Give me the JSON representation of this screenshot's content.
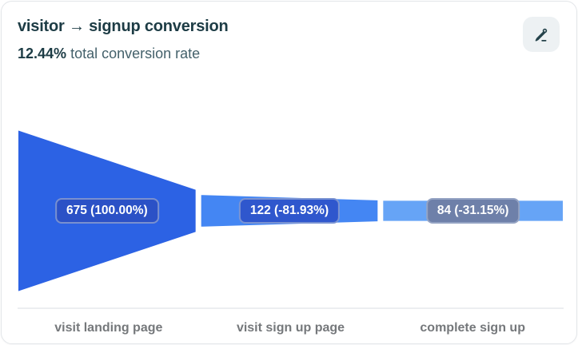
{
  "header": {
    "title": "visitor → signup conversion",
    "total_rate": "12.44%",
    "total_rate_label": "total conversion rate"
  },
  "colors": {
    "accent_blue": "#2c62e4",
    "title_text": "#1d3c45",
    "axis_label_text": "#75787b",
    "edit_button_bg": "#edf1f3"
  },
  "chart_data": {
    "type": "funnel",
    "title": "visitor → signup conversion",
    "total_conversion_rate": "12.44%",
    "orientation": "horizontal",
    "max_value": 675,
    "grid": false,
    "steps": [
      {
        "label": "visit landing page",
        "value": 675,
        "display": "675 (100.00%)",
        "change_from_previous": "100.00%",
        "segment_color": "#2c62e4",
        "pill_color": "#2b51c6"
      },
      {
        "label": "visit sign up page",
        "value": 122,
        "display": "122 (-81.93%)",
        "change_from_previous": "-81.93%",
        "segment_color": "#4486f3",
        "pill_color": "#2f57cd"
      },
      {
        "label": "complete sign up",
        "value": 84,
        "display": "84 (-31.15%)",
        "change_from_previous": "-31.15%",
        "segment_color": "#66a4f6",
        "pill_color": "#6e80a9"
      }
    ]
  }
}
